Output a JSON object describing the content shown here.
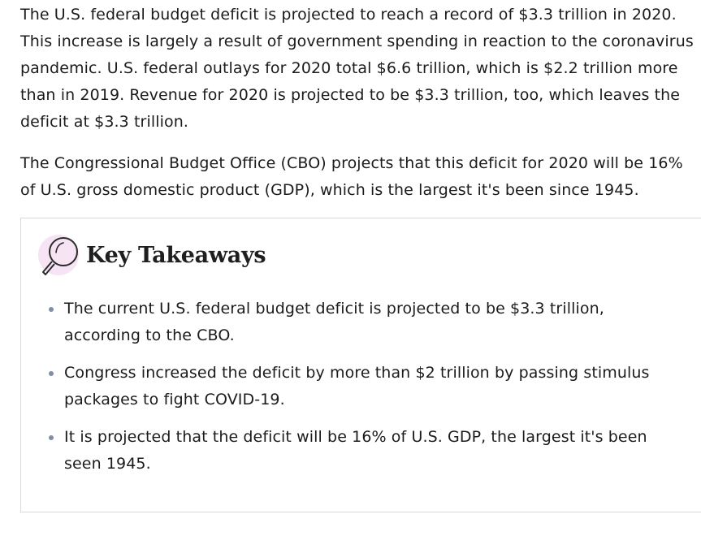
{
  "article": {
    "paragraph_1": "The U.S. federal budget deficit is projected to reach a record of $3.3 trillion in 2020. This increase is largely a result of government spending in reaction to the coronavirus pandemic. U.S. federal outlays for 2020 total $6.6 trillion, which is $2.2 trillion more than in 2019. Revenue for 2020 is projected to be $3.3 trillion, too, which leaves the deficit at $3.3 trillion.",
    "paragraph_2": "The Congressional Budget Office (CBO) projects that this deficit for 2020 will be 16% of U.S. gross domestic product (GDP), which is the largest it's been since 1945."
  },
  "key_takeaways": {
    "title": "Key Takeaways",
    "icon": "magnifying-glass-icon",
    "items": [
      "The current U.S. federal budget deficit is projected to be $3.3 trillion, according to the CBO.",
      "Congress increased the deficit by more than $2 trillion by passing stimulus packages to fight COVID-19.",
      "It is projected that the deficit will be 16% of U.S. GDP, the largest it's been seen 1945."
    ]
  },
  "colors": {
    "text": "#1b1b1b",
    "border": "#d9d9d9",
    "bullet": "#7f8da6",
    "icon_accent": "#f6e3f3"
  }
}
